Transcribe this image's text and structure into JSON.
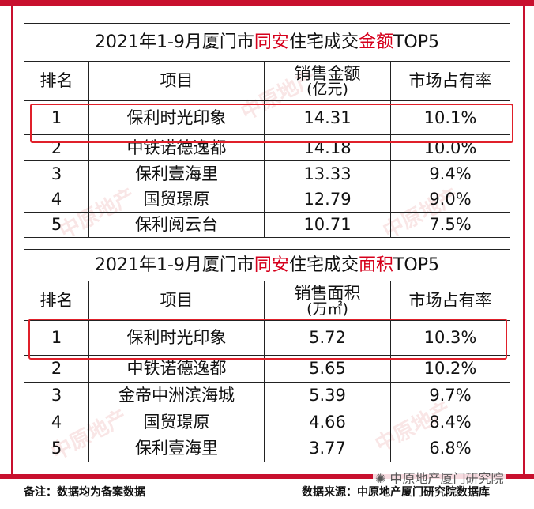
{
  "table1": {
    "title_part1": "2021年1-9月厦门市",
    "title_highlight1": "同安",
    "title_part2": "住宅成交",
    "title_highlight2": "金额",
    "title_part3": "TOP5",
    "headers": {
      "rank": "排名",
      "project": "项目",
      "metric_line1": "销售金额",
      "metric_line2": "(亿元)",
      "share": "市场占有率"
    },
    "rows": [
      {
        "rank": "1",
        "project": "保利时光印象",
        "value": "14.31",
        "share": "10.1%"
      },
      {
        "rank": "2",
        "project": "中铁诺德逸都",
        "value": "14.18",
        "share": "10.0%"
      },
      {
        "rank": "3",
        "project": "保利壹海里",
        "value": "13.33",
        "share": "9.4%"
      },
      {
        "rank": "4",
        "project": "国贸璟原",
        "value": "12.79",
        "share": "9.0%"
      },
      {
        "rank": "5",
        "project": "保利阅云台",
        "value": "10.71",
        "share": "7.5%"
      }
    ]
  },
  "table2": {
    "title_part1": "2021年1-9月厦门市",
    "title_highlight1": "同安",
    "title_part2": "住宅成交",
    "title_highlight2": "面积",
    "title_part3": "TOP5",
    "headers": {
      "rank": "排名",
      "project": "项目",
      "metric_line1": "销售面积",
      "metric_line2": "(万㎡)",
      "share": "市场占有率"
    },
    "rows": [
      {
        "rank": "1",
        "project": "保利时光印象",
        "value": "5.72",
        "share": "10.3%"
      },
      {
        "rank": "2",
        "project": "中铁诺德逸都",
        "value": "5.65",
        "share": "10.2%"
      },
      {
        "rank": "3",
        "project": "金帝中洲滨海城",
        "value": "5.39",
        "share": "9.7%"
      },
      {
        "rank": "4",
        "project": "国贸璟原",
        "value": "4.66",
        "share": "8.4%"
      },
      {
        "rank": "5",
        "project": "保利壹海里",
        "value": "3.77",
        "share": "6.8%"
      }
    ]
  },
  "footer": {
    "note": "备注：数据均为备案数据",
    "source": "数据来源：中原地产厦门研究院数据库",
    "wechat_label": "中原地产厦门研究院"
  },
  "watermark": "中原地产",
  "colors": {
    "accent_red": "#d6001c",
    "frame_red": "#c8102e",
    "highlight_box": "#e0202a"
  }
}
